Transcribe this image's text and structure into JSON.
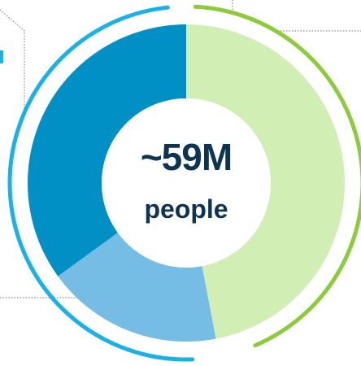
{
  "chart_data": {
    "type": "pie",
    "title": "",
    "slices": [
      {
        "value": 47,
        "color": "#d1efb5"
      },
      {
        "value": 18,
        "color": "#75bde4"
      },
      {
        "value": 35,
        "color": "#0090c6"
      }
    ],
    "center_label": {
      "value": "~59M",
      "unit": "people"
    },
    "outer_arcs": [
      {
        "color": "#19b2e8"
      },
      {
        "color": "#8ccc3a"
      }
    ],
    "connector_color": "#8a8a8a",
    "center_color": "#ffffff"
  }
}
